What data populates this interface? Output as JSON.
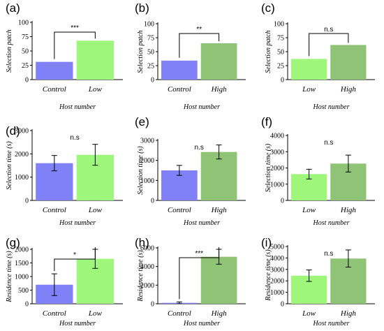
{
  "colors": {
    "control": "#8080f7",
    "low": "#9ef77a",
    "high": "#8fc476"
  },
  "chart_data": [
    {
      "panel": "(a)",
      "type": "bar",
      "categories": [
        "Control",
        "Low"
      ],
      "values": [
        31,
        68
      ],
      "errors": null,
      "ylabel": "Selection patch",
      "xlabel": "Host number",
      "ylim": [
        0,
        100
      ],
      "yticks": [
        0,
        25,
        50,
        75,
        100
      ],
      "significance": "***",
      "bracket": true
    },
    {
      "panel": "(b)",
      "type": "bar",
      "categories": [
        "Control",
        "High"
      ],
      "values": [
        34,
        65
      ],
      "errors": null,
      "ylabel": "Selection patch",
      "xlabel": "Host number",
      "ylim": [
        0,
        100
      ],
      "yticks": [
        0,
        25,
        50,
        75,
        100
      ],
      "significance": "**",
      "bracket": true
    },
    {
      "panel": "(c)",
      "type": "bar",
      "categories": [
        "Low",
        "High"
      ],
      "values": [
        37,
        62
      ],
      "errors": null,
      "ylabel": "Selection patch",
      "xlabel": "Host number",
      "ylim": [
        0,
        100
      ],
      "yticks": [
        0,
        25,
        50,
        75,
        100
      ],
      "significance": "n.s",
      "bracket": true
    },
    {
      "panel": "(d)",
      "type": "bar",
      "categories": [
        "Control",
        "Low"
      ],
      "values": [
        1600,
        1960
      ],
      "errors": [
        330,
        450
      ],
      "ylabel": "Selection time (s)",
      "xlabel": "Host number",
      "ylim": [
        0,
        3000
      ],
      "yticks": [
        0,
        1000,
        2000,
        3000
      ],
      "significance": "n.s",
      "bracket": false
    },
    {
      "panel": "(e)",
      "type": "bar",
      "categories": [
        "Control",
        "High"
      ],
      "values": [
        1500,
        2420
      ],
      "errors": [
        250,
        350
      ],
      "ylabel": "Selection time (s)",
      "xlabel": "Host number",
      "ylim": [
        0,
        3000
      ],
      "yticks": [
        0,
        1000,
        2000,
        3000
      ],
      "significance": "n.s",
      "bracket": false
    },
    {
      "panel": "(f)",
      "type": "bar",
      "categories": [
        "Low",
        "High"
      ],
      "values": [
        1620,
        2270
      ],
      "errors": [
        300,
        520
      ],
      "ylabel": "Selection time (s)",
      "xlabel": "Host number",
      "ylim": [
        0,
        4000
      ],
      "yticks": [
        0,
        1000,
        2000,
        3000,
        4000
      ],
      "significance": "n.s",
      "bracket": false
    },
    {
      "panel": "(g)",
      "type": "bar",
      "categories": [
        "Control",
        "Low"
      ],
      "values": [
        700,
        1650
      ],
      "errors": [
        400,
        350
      ],
      "ylabel": "Residence time (s)",
      "xlabel": "Host number",
      "ylim": [
        0,
        2000
      ],
      "yticks": [
        0,
        500,
        1000,
        1500,
        2000
      ],
      "significance": "*",
      "bracket": true
    },
    {
      "panel": "(h)",
      "type": "bar",
      "categories": [
        "Control",
        "High"
      ],
      "values": [
        100,
        5050
      ],
      "errors": [
        100,
        800
      ],
      "ylabel": "Residence time (s)",
      "xlabel": "Host number",
      "ylim": [
        0,
        6000
      ],
      "yticks": [
        0,
        2000,
        4000,
        6000
      ],
      "significance": "***",
      "bracket": true
    },
    {
      "panel": "(i)",
      "type": "bar",
      "categories": [
        "Low",
        "High"
      ],
      "values": [
        2450,
        3950
      ],
      "errors": [
        500,
        750
      ],
      "ylabel": "Residence time (s)",
      "xlabel": "Host number",
      "ylim": [
        0,
        5000
      ],
      "yticks": [
        0,
        1000,
        2000,
        3000,
        4000,
        5000
      ],
      "significance": "n.s",
      "bracket": false
    }
  ]
}
